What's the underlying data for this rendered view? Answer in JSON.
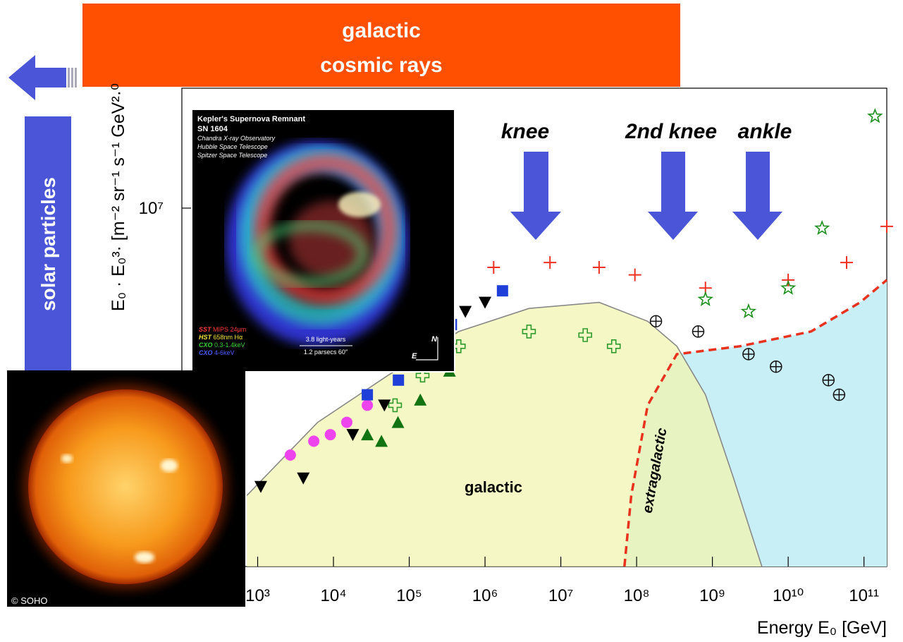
{
  "chart_data": {
    "type": "scatter",
    "x_label": "Energy E₀ [GeV]",
    "y_label": "E₀ · E₀³· [m⁻² sr⁻¹ s⁻¹ GeV²·⁰",
    "xscale": "log",
    "yscale": "log",
    "grid": false,
    "xlim": [
      100,
      200000000000.0
    ],
    "ylim": [
      1260000.0,
      20000000.0
    ],
    "xticks": [
      {
        "value": 1000.0,
        "label": "10³"
      },
      {
        "value": 10000.0,
        "label": "10⁴"
      },
      {
        "value": 100000.0,
        "label": "10⁵"
      },
      {
        "value": 1000000.0,
        "label": "10⁶"
      },
      {
        "value": 10000000.0,
        "label": "10⁷"
      },
      {
        "value": 100000000.0,
        "label": "10⁸"
      },
      {
        "value": 1000000000.0,
        "label": "10⁹"
      },
      {
        "value": 10000000000.0,
        "label": "10¹⁰"
      },
      {
        "value": 100000000000.0,
        "label": "10¹¹"
      }
    ],
    "yticks": [
      {
        "value": 10000000.0,
        "label": "10⁷"
      }
    ],
    "annotations": [
      "knee",
      "2nd knee",
      "ankle",
      "galactic",
      "extragalactic"
    ],
    "series": [
      {
        "mark": "dashed-line",
        "color": "#e8321e",
        "fill": "#c8eef6",
        "x": [
          69000000.0,
          85000000.0,
          140000000.0,
          340000000.0,
          2300000000.0,
          20000000000.0,
          89000000000.0,
          200000000000.0
        ],
        "values": [
          1260000.0,
          1900000.0,
          3200000.0,
          4300000.0,
          4500000.0,
          4900000.0,
          5800000.0,
          6600000.0
        ]
      },
      {
        "mark": "line",
        "color": "#888888",
        "fill": "#f2f5b0",
        "x": [
          720.0,
          6200.0,
          52000.0,
          450000.0,
          3800000.0,
          32000000.0,
          140000000.0,
          340000000.0,
          810000000.0,
          1900000000.0,
          4500000000.0
        ],
        "values": [
          1900000.0,
          2900000.0,
          3800000.0,
          4900000.0,
          5600000.0,
          5800000.0,
          5200000.0,
          4500000.0,
          3400000.0,
          2100000.0,
          1260000.0
        ]
      },
      {
        "mark": "plus-open",
        "color": "#2e9a2e",
        "x": [
          65000.0,
          150000.0,
          450000.0,
          3800000.0,
          21000000.0,
          50000000.0
        ],
        "values": [
          3200000.0,
          3800000.0,
          4500000.0,
          4900000.0,
          4800000.0,
          4500000.0
        ]
      },
      {
        "mark": "triangle-down",
        "color": "#000000",
        "x": [
          1100.0,
          4000.0,
          18000.0,
          47000.0,
          550000.0,
          1000000.0
        ],
        "values": [
          2000000.0,
          2100000.0,
          2700000.0,
          3200000.0,
          5500000.0,
          5800000.0
        ]
      },
      {
        "mark": "circle",
        "color": "#ee44ee",
        "x": [
          2700.0,
          5500.0,
          9100.0,
          15000.0,
          28000.0
        ],
        "values": [
          2400000.0,
          2600000.0,
          2700000.0,
          2900000.0,
          3200000.0
        ]
      },
      {
        "mark": "triangle-up",
        "color": "#127312",
        "x": [
          28000.0,
          43000.0,
          71000.0,
          140000.0,
          340000.0
        ],
        "values": [
          2700000.0,
          2600000.0,
          2900000.0,
          3300000.0,
          3900000.0
        ]
      },
      {
        "mark": "square",
        "color": "#1f3fd8",
        "x": [
          28000.0,
          72000.0,
          360000.0,
          1700000.0
        ],
        "values": [
          3400000.0,
          3700000.0,
          5100000.0,
          6200000.0
        ]
      },
      {
        "mark": "plus",
        "color": "#f03020",
        "x": [
          1300000.0,
          7200000.0,
          32000000.0,
          95000000.0,
          810000000.0,
          10000000000.0,
          59000000000.0,
          200000000000.0
        ],
        "values": [
          7100000.0,
          7300000.0,
          7100000.0,
          6800000.0,
          6300000.0,
          6600000.0,
          7300000.0,
          9000000.0
        ]
      },
      {
        "mark": "star",
        "color": "#1d8f1d",
        "x": [
          810000000.0,
          3000000000.0,
          10000000000.0,
          28000000000.0,
          140000000000.0
        ],
        "values": [
          5900000.0,
          5500000.0,
          6300000.0,
          8900000.0,
          17000000.0
        ]
      },
      {
        "mark": "circled-plus",
        "color": "#111111",
        "x": [
          180000000.0,
          650000000.0,
          3000000000.0,
          6900000000.0,
          34000000000.0,
          47000000000.0
        ],
        "values": [
          5200000.0,
          4900000.0,
          4300000.0,
          4000000.0,
          3700000.0,
          3400000.0
        ]
      }
    ]
  },
  "banner": {
    "lines": [
      "galactic",
      "cosmic rays"
    ]
  },
  "side_label": "solar particles",
  "insets": {
    "supernova": {
      "title": "Kepler's Supernova Remnant",
      "subtitle": "SN 1604",
      "credits": [
        "Chandra X-ray Observatory",
        "Hubble Space Telescope",
        "Spitzer Space Telescope"
      ],
      "bands": [
        {
          "instrument": "SST",
          "band": "MIPS 24µm",
          "color": "#ff3a3a"
        },
        {
          "instrument": "HST",
          "band": "658nm Hα",
          "color": "#f4e23a"
        },
        {
          "instrument": "CXO",
          "band": "0.3-1.4keV",
          "color": "#3ad43a"
        },
        {
          "instrument": "CXO",
          "band": "4-6keV",
          "color": "#4a5cff"
        }
      ],
      "scale": [
        "3.8 light-years",
        "1.2 parsecs 60″"
      ],
      "compass": [
        "N",
        "E"
      ]
    },
    "sun": {
      "credit": "© SOHO"
    }
  }
}
